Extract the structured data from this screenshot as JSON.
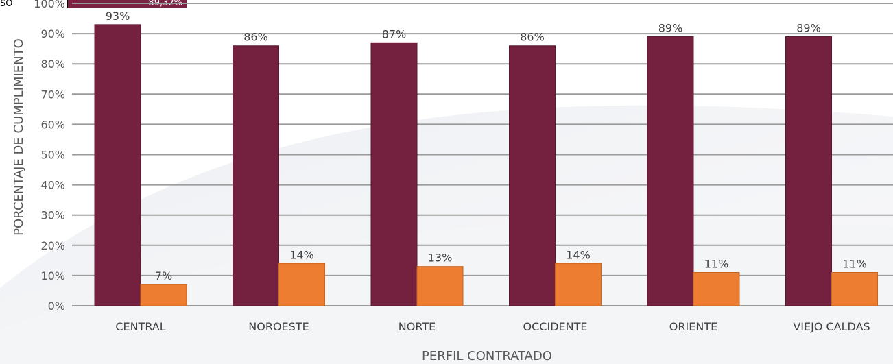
{
  "colors": {
    "series_1": "#74213F",
    "series_2": "#ED7D31",
    "grid": "#9a9a9a",
    "text": "#404040"
  },
  "legend_strip": {
    "label": "SO",
    "value": "89,32%"
  },
  "chart_data": {
    "type": "bar",
    "categories": [
      "CENTRAL",
      "NOROESTE",
      "NORTE",
      "OCCIDENTE",
      "ORIENTE",
      "VIEJO CALDAS"
    ],
    "series": [
      {
        "values": [
          93,
          86,
          87,
          86,
          89,
          89
        ]
      },
      {
        "values": [
          7,
          14,
          13,
          14,
          11,
          11
        ]
      }
    ],
    "data_labels": [
      [
        "93%",
        "86%",
        "87%",
        "86%",
        "89%",
        "89%"
      ],
      [
        "7%",
        "14%",
        "13%",
        "14%",
        "11%",
        "11%"
      ]
    ],
    "xlabel": "PERFIL CONTRATADO",
    "ylabel": "PORCENTAJE DE CUMPLIMIENTO",
    "ylim": [
      0,
      100
    ],
    "yticks": [
      "0%",
      "10%",
      "20%",
      "30%",
      "40%",
      "50%",
      "60%",
      "70%",
      "80%",
      "90%",
      "100%"
    ],
    "grid": true
  }
}
